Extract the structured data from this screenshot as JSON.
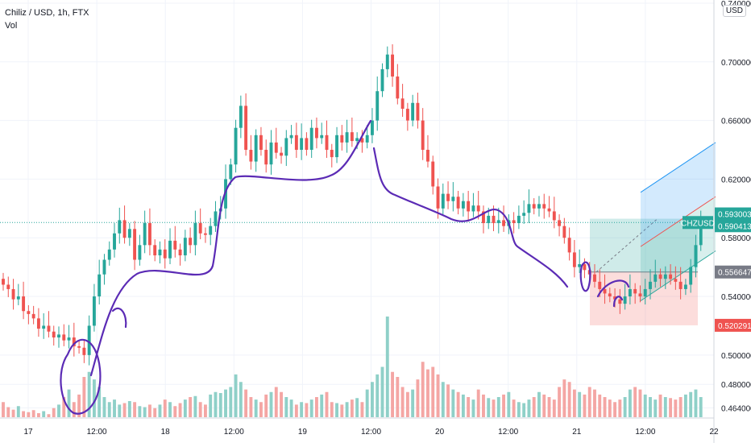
{
  "legend": {
    "symbol_line": "Chiliz / USD, 1h, FTX",
    "volume_label": "Vol"
  },
  "currency_badge": "USD",
  "colors": {
    "up": "#26a69a",
    "down": "#ef5350",
    "vol_up": "#8fd0c8",
    "vol_down": "#f4a6a4",
    "drawing": "#5b2bb5",
    "channel": "#2196f3",
    "grid": "#f0f3fa",
    "price_line": "#26a69a"
  },
  "chart_data": {
    "type": "candlestick",
    "title": "Chiliz / USD, 1h, FTX",
    "symbol": "CHZUSD",
    "ylim": [
      0.462,
      0.74
    ],
    "y_ticks": [
      "0.464000",
      "0.480000",
      "0.500000",
      "0.540000",
      "0.580000",
      "0.620000",
      "0.660000",
      "0.700000",
      "0.740000"
    ],
    "x_ticks": [
      "17",
      "12:00",
      "18",
      "12:00",
      "19",
      "12:00",
      "20",
      "12:00",
      "21",
      "12:00",
      "22"
    ],
    "price_labels": [
      {
        "label": "0.593003",
        "value": 0.593003,
        "color": "#26a69a"
      },
      {
        "label": "CHZUSD",
        "value": 0.590413,
        "color": "#26a69a"
      },
      {
        "label": "0.590413",
        "value": 0.590413,
        "color": "#26a69a"
      },
      {
        "label": "0.556647",
        "value": 0.556647,
        "color": "#787b86"
      },
      {
        "label": "0.520291",
        "value": 0.520291,
        "color": "#ef5350"
      }
    ],
    "current_price": 0.590413,
    "position_tool": {
      "target": 0.593003,
      "entry": 0.556647,
      "stop": 0.520291
    },
    "series_close": [
      0.548,
      0.545,
      0.538,
      0.54,
      0.53,
      0.528,
      0.525,
      0.518,
      0.52,
      0.516,
      0.512,
      0.514,
      0.51,
      0.512,
      0.506,
      0.505,
      0.5,
      0.52,
      0.54,
      0.555,
      0.565,
      0.572,
      0.583,
      0.592,
      0.58,
      0.586,
      0.565,
      0.575,
      0.59,
      0.575,
      0.568,
      0.572,
      0.566,
      0.578,
      0.572,
      0.568,
      0.58,
      0.575,
      0.59,
      0.583,
      0.582,
      0.588,
      0.598,
      0.6,
      0.62,
      0.63,
      0.655,
      0.67,
      0.64,
      0.632,
      0.65,
      0.64,
      0.63,
      0.645,
      0.638,
      0.636,
      0.648,
      0.65,
      0.64,
      0.648,
      0.64,
      0.655,
      0.648,
      0.65,
      0.64,
      0.635,
      0.65,
      0.645,
      0.652,
      0.646,
      0.648,
      0.645,
      0.65,
      0.66,
      0.68,
      0.695,
      0.705,
      0.69,
      0.675,
      0.668,
      0.66,
      0.672,
      0.66,
      0.64,
      0.632,
      0.615,
      0.6,
      0.61,
      0.605,
      0.608,
      0.6,
      0.605,
      0.598,
      0.602,
      0.598,
      0.59,
      0.595,
      0.59,
      0.592,
      0.588,
      0.592,
      0.59,
      0.595,
      0.597,
      0.603,
      0.6,
      0.603,
      0.6,
      0.598,
      0.592,
      0.588,
      0.58,
      0.57,
      0.56,
      0.562,
      0.558,
      0.555,
      0.55,
      0.545,
      0.542,
      0.54,
      0.538,
      0.535,
      0.54,
      0.545,
      0.542,
      0.54,
      0.545,
      0.55,
      0.555,
      0.552,
      0.555,
      0.552,
      0.55,
      0.545,
      0.548,
      0.56,
      0.575,
      0.59
    ],
    "series_volume": [
      0.3,
      0.2,
      0.15,
      0.22,
      0.12,
      0.1,
      0.14,
      0.08,
      0.12,
      0.06,
      0.18,
      0.25,
      0.4,
      0.55,
      0.3,
      0.45,
      0.8,
      0.9,
      0.75,
      0.6,
      0.4,
      0.3,
      0.35,
      0.25,
      0.28,
      0.32,
      0.3,
      0.22,
      0.2,
      0.25,
      0.18,
      0.25,
      0.35,
      0.3,
      0.22,
      0.28,
      0.35,
      0.4,
      0.42,
      0.3,
      0.25,
      0.45,
      0.5,
      0.48,
      0.55,
      0.6,
      0.85,
      0.7,
      0.55,
      0.4,
      0.35,
      0.3,
      0.45,
      0.5,
      0.6,
      0.5,
      0.4,
      0.35,
      0.25,
      0.3,
      0.28,
      0.35,
      0.4,
      0.45,
      0.5,
      0.3,
      0.28,
      0.25,
      0.3,
      0.35,
      0.38,
      0.3,
      0.55,
      0.7,
      0.85,
      1.0,
      2.0,
      0.9,
      0.8,
      0.6,
      0.5,
      0.55,
      0.75,
      1.1,
      0.95,
      1.0,
      0.85,
      0.7,
      0.65,
      0.55,
      0.5,
      0.45,
      0.4,
      0.35,
      0.55,
      0.45,
      0.38,
      0.35,
      0.4,
      0.45,
      0.5,
      0.35,
      0.3,
      0.28,
      0.35,
      0.4,
      0.5,
      0.45,
      0.4,
      0.35,
      0.6,
      0.75,
      0.7,
      0.55,
      0.5,
      0.45,
      0.6,
      0.55,
      0.45,
      0.4,
      0.35,
      0.3,
      0.35,
      0.4,
      0.55,
      0.6,
      0.55,
      0.45,
      0.4,
      0.35,
      0.45,
      0.4,
      0.38,
      0.35,
      0.4,
      0.45,
      0.5,
      0.55,
      0.4
    ]
  }
}
